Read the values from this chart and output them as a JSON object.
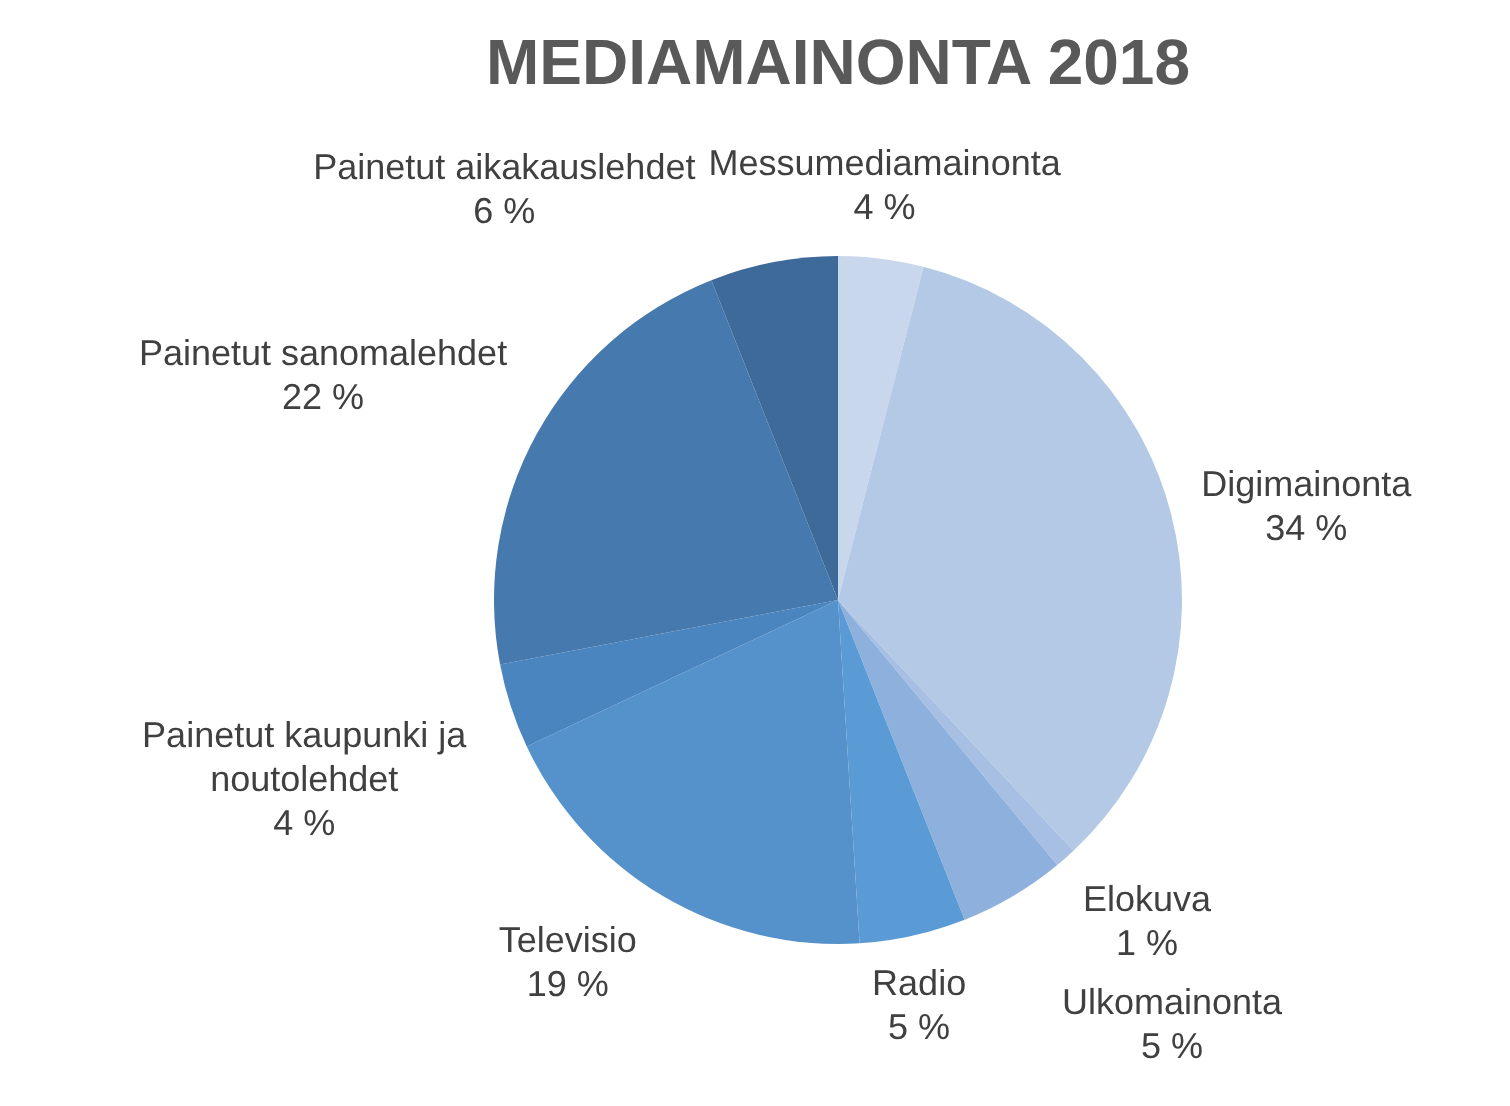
{
  "chart_data": {
    "type": "pie",
    "title": "MEDIAMAINONTA 2018",
    "categories": [
      "Messumediamainonta",
      "Digimainonta",
      "Elokuva",
      "Ulkomainonta",
      "Radio",
      "Televisio",
      "Painetut kaupunki ja noutolehdet",
      "Painetut sanomalehdet",
      "Painetut aikakauslehdet"
    ],
    "values": [
      4,
      34,
      1,
      5,
      5,
      19,
      4,
      22,
      6
    ],
    "colors": [
      "#c9d7ec",
      "#b4c9e6",
      "#a6bfe3",
      "#8eb0dc",
      "#5b9bd5",
      "#5592cb",
      "#4a85c0",
      "#4679ad",
      "#3d6a98"
    ],
    "value_labels": [
      "4 %",
      "34 %",
      "1 %",
      "5 %",
      "5 %",
      "19 %",
      "4 %",
      "22 %",
      "6 %"
    ]
  }
}
